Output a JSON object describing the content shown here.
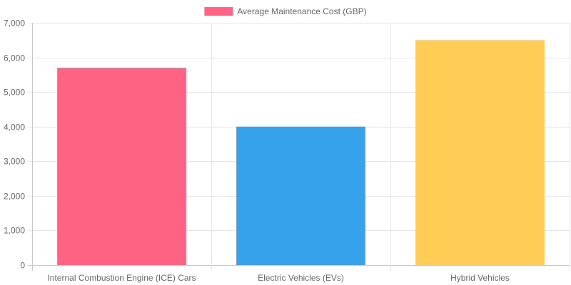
{
  "chart_data": {
    "type": "bar",
    "categories": [
      "Internal Combustion Engine (ICE) Cars",
      "Electric Vehicles (EVs)",
      "Hybrid Vehicles"
    ],
    "series": [
      {
        "name": "Average Maintenance Cost (GBP)",
        "values": [
          5700,
          4000,
          6500
        ],
        "colors": [
          "#ff6384",
          "#36a2eb",
          "#ffcd56"
        ]
      }
    ],
    "ylim": [
      0,
      7000
    ],
    "yticks": [
      0,
      1000,
      2000,
      3000,
      4000,
      5000,
      6000,
      7000
    ],
    "ytick_labels": [
      "0",
      "1,000",
      "2,000",
      "3,000",
      "4,000",
      "5,000",
      "6,000",
      "7,000"
    ],
    "grid": true,
    "legend": "top-center",
    "title": "",
    "xlabel": "",
    "ylabel": ""
  }
}
